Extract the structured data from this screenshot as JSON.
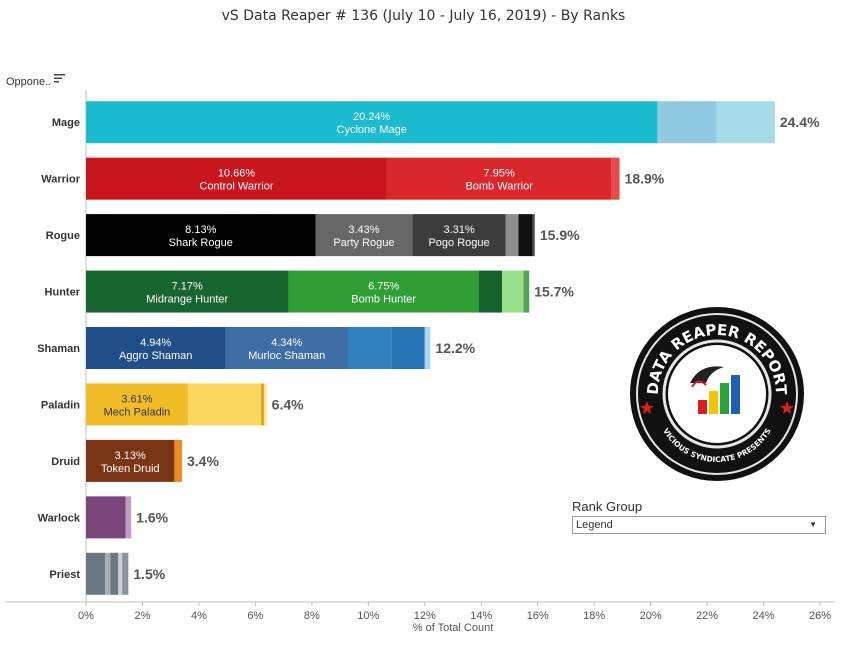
{
  "title": "vS Data Reaper #  136 (July 10 - July 16, 2019) - By Ranks",
  "filter_label": "Oppone..",
  "legend": {
    "title": "Rank Group",
    "selected": "Legend"
  },
  "logo": {
    "top_text": "DATA REAPER REPORT",
    "bottom_text": "VICIOUS SYNDICATE PRESENTS"
  },
  "icons": {
    "sort": "sort-icon",
    "dropdown": "chevron-down-icon",
    "logo": "data-reaper-logo"
  },
  "chart_data": {
    "type": "bar",
    "orientation": "horizontal",
    "stacked": true,
    "title": "vS Data Reaper #  136 (July 10 - July 16, 2019) - By Ranks",
    "xlabel": "% of Total Count",
    "ylabel": "Oppone..",
    "xlim": [
      0,
      26
    ],
    "xticks": [
      "0%",
      "2%",
      "4%",
      "6%",
      "8%",
      "10%",
      "12%",
      "14%",
      "16%",
      "18%",
      "20%",
      "22%",
      "24%",
      "26%"
    ],
    "grid": false,
    "legend_placement": "bottom-right",
    "categories": [
      {
        "name": "Mage",
        "total_label": "24.4%",
        "segments": [
          {
            "value": 20.24,
            "label": "Cyclone Mage",
            "value_label": "20.24%",
            "color": "#1bbccf"
          },
          {
            "value": 2.1,
            "color": "#90cae0"
          },
          {
            "value": 2.06,
            "color": "#a3dbe6"
          }
        ]
      },
      {
        "name": "Warrior",
        "total_label": "18.9%",
        "segments": [
          {
            "value": 10.66,
            "label": "Control Warrior",
            "value_label": "10.66%",
            "color": "#c8161c"
          },
          {
            "value": 7.95,
            "label": "Bomb Warrior",
            "value_label": "7.95%",
            "color": "#d9272c"
          },
          {
            "value": 0.29,
            "color": "#e84a4a"
          }
        ]
      },
      {
        "name": "Rogue",
        "total_label": "15.9%",
        "segments": [
          {
            "value": 8.13,
            "label": "Shark Rogue",
            "value_label": "8.13%",
            "color": "#000000"
          },
          {
            "value": 3.43,
            "label": "Party Rogue",
            "value_label": "3.43%",
            "color": "#676767"
          },
          {
            "value": 3.31,
            "label": "Pogo Rogue",
            "value_label": "3.31%",
            "color": "#3c3c3c"
          },
          {
            "value": 0.45,
            "color": "#8d8d8d"
          },
          {
            "value": 0.5,
            "color": "#111111"
          },
          {
            "value": 0.08,
            "color": "#555555"
          }
        ]
      },
      {
        "name": "Hunter",
        "total_label": "15.7%",
        "segments": [
          {
            "value": 7.17,
            "label": "Midrange Hunter",
            "value_label": "7.17%",
            "color": "#17652f"
          },
          {
            "value": 6.75,
            "label": "Bomb Hunter",
            "value_label": "6.75%",
            "color": "#2f9e35"
          },
          {
            "value": 0.82,
            "color": "#16612c"
          },
          {
            "value": 0.76,
            "color": "#98df8a"
          },
          {
            "value": 0.2,
            "color": "#54a254"
          }
        ]
      },
      {
        "name": "Shaman",
        "total_label": "12.2%",
        "segments": [
          {
            "value": 4.94,
            "label": "Aggro Shaman",
            "value_label": "4.94%",
            "color": "#1f4e88"
          },
          {
            "value": 4.34,
            "label": "Murloc Shaman",
            "value_label": "4.34%",
            "color": "#3d6fa6"
          },
          {
            "value": 1.53,
            "color": "#3081c1"
          },
          {
            "value": 1.19,
            "color": "#2473b5"
          },
          {
            "value": 0.2,
            "color": "#a8d8ee"
          }
        ]
      },
      {
        "name": "Paladin",
        "total_label": "6.4%",
        "segments": [
          {
            "value": 3.61,
            "label": "Mech Paladin",
            "value_label": "3.61%",
            "color": "#f0bc28"
          },
          {
            "value": 2.6,
            "color": "#fcd760"
          },
          {
            "value": 0.09,
            "color": "#d89b0a"
          },
          {
            "value": 0.1,
            "color": "#fbe19a"
          }
        ]
      },
      {
        "name": "Druid",
        "total_label": "3.4%",
        "segments": [
          {
            "value": 3.13,
            "label": "Token Druid",
            "value_label": "3.13%",
            "color": "#7a3515"
          },
          {
            "value": 0.27,
            "color": "#ef8a23"
          }
        ]
      },
      {
        "name": "Warlock",
        "total_label": "1.6%",
        "segments": [
          {
            "value": 1.4,
            "color": "#7b467c"
          },
          {
            "value": 0.2,
            "color": "#c39cc6"
          }
        ]
      },
      {
        "name": "Priest",
        "total_label": "1.5%",
        "segments": [
          {
            "value": 0.68,
            "color": "#6b7880"
          },
          {
            "value": 0.18,
            "color": "#a8b0b4"
          },
          {
            "value": 0.28,
            "color": "#6b7880"
          },
          {
            "value": 0.14,
            "color": "#c9cfd2"
          },
          {
            "value": 0.22,
            "color": "#8a949a"
          }
        ]
      }
    ]
  }
}
